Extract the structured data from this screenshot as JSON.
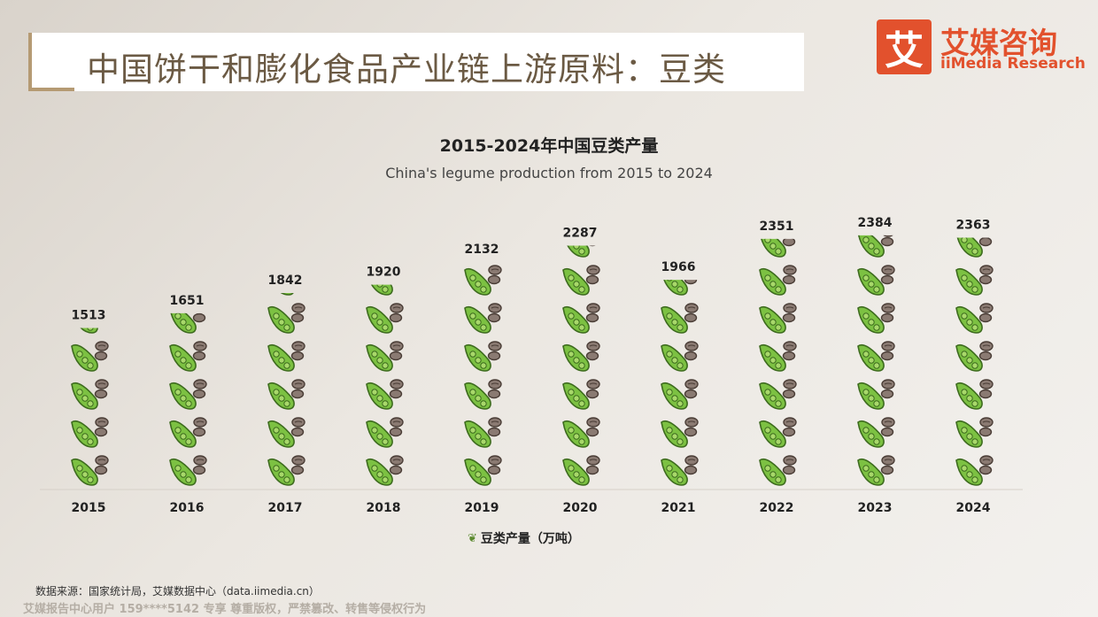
{
  "header": {
    "title": "中国饼干和膨化食品产业链上游原料：豆类"
  },
  "logo": {
    "mark": "艾",
    "name_cn": "艾媒咨询",
    "name_en": "iiMedia Research"
  },
  "colors": {
    "brand": "#e2512d",
    "accent": "#b59a73",
    "pod": "#7cc142",
    "bean": "#8a7a72"
  },
  "chart_data": {
    "type": "bar",
    "title": "2015-2024年中国豆类产量",
    "subtitle": "China's legume production from 2015 to 2024",
    "categories": [
      "2015",
      "2016",
      "2017",
      "2018",
      "2019",
      "2020",
      "2021",
      "2022",
      "2023",
      "2024"
    ],
    "series": [
      {
        "name": "豆类产量（万吨）",
        "values": [
          1513,
          1651,
          1842,
          1920,
          2132,
          2287,
          1966,
          2351,
          2384,
          2363
        ]
      }
    ],
    "ylim": [
      0,
      2400
    ],
    "legend": "bottom",
    "grid": false
  },
  "legend": {
    "label": "豆类产量（万吨）",
    "icon": "pea-pod-icon"
  },
  "footer": {
    "source": "数据来源：国家统计局，艾媒数据中心（data.iimedia.cn）",
    "watermark": "艾媒报告中心用户 159****5142 专享 尊重版权，严禁篡改、转售等侵权行为"
  }
}
